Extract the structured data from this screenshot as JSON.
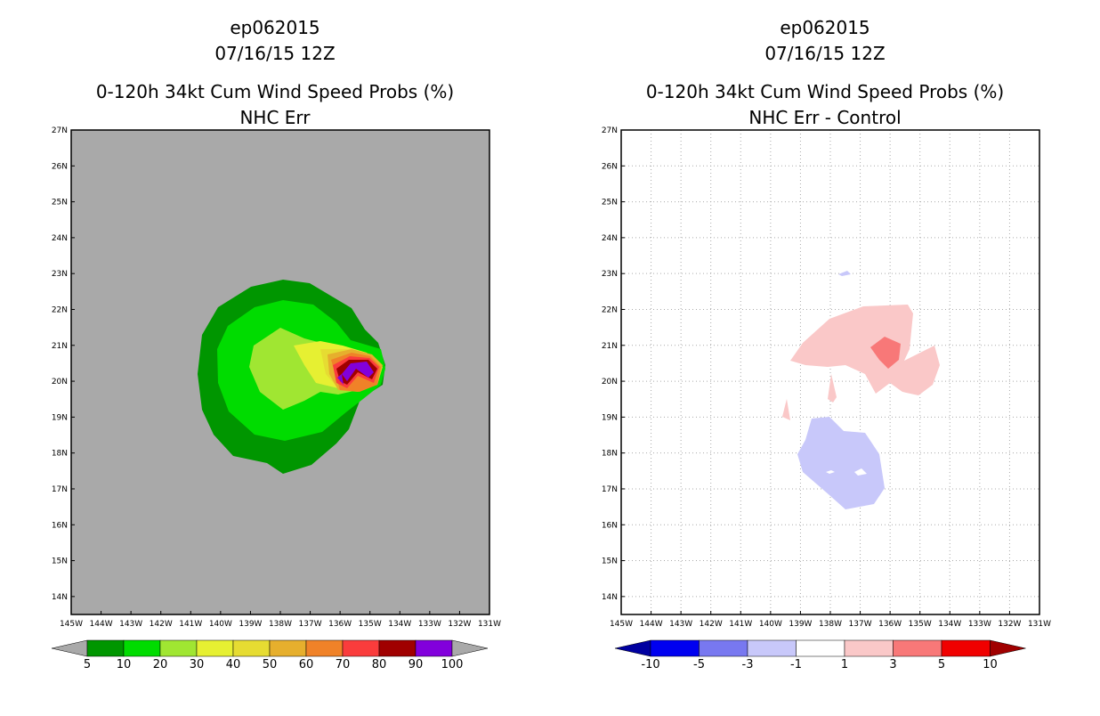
{
  "left": {
    "title_line1": "ep062015",
    "title_line2": "07/16/15 12Z",
    "title_line3": "0-120h 34kt Cum Wind Speed Probs (%)",
    "title_line4": "NHC Err",
    "background_color": "#a9a9a9",
    "colorbar": {
      "labels": [
        "5",
        "10",
        "20",
        "30",
        "40",
        "50",
        "60",
        "70",
        "80",
        "90",
        "100"
      ],
      "colors": [
        "#009600",
        "#00dc00",
        "#a0e632",
        "#e6f032",
        "#e6dc32",
        "#e6af2d",
        "#f08228",
        "#fa3c3c",
        "#a00000",
        "#8200dc"
      ],
      "end_colors": [
        "#a9a9a9",
        "#a9a9a9"
      ]
    }
  },
  "right": {
    "title_line1": "ep062015",
    "title_line2": "07/16/15 12Z",
    "title_line3": "0-120h 34kt Cum Wind Speed Probs (%)",
    "title_line4": "NHC Err - Control",
    "colorbar": {
      "labels": [
        "-10",
        "-5",
        "-3",
        "-1",
        "1",
        "3",
        "5",
        "10"
      ],
      "colors": [
        "#0000f0",
        "#7878f0",
        "#c8c8fa",
        "#ffffff",
        "#fac8c8",
        "#f87878",
        "#f00000"
      ],
      "end_colors": [
        "#0000a0",
        "#a00000"
      ]
    }
  },
  "axes": {
    "lat_labels": [
      "27N",
      "26N",
      "25N",
      "24N",
      "23N",
      "22N",
      "21N",
      "20N",
      "19N",
      "18N",
      "17N",
      "16N",
      "15N",
      "14N"
    ],
    "lon_labels": [
      "145W",
      "144W",
      "143W",
      "142W",
      "141W",
      "140W",
      "139W",
      "138W",
      "137W",
      "136W",
      "135W",
      "134W",
      "133W",
      "132W",
      "131W"
    ]
  },
  "icons": [
    "map-frame-left",
    "map-frame-right"
  ]
}
